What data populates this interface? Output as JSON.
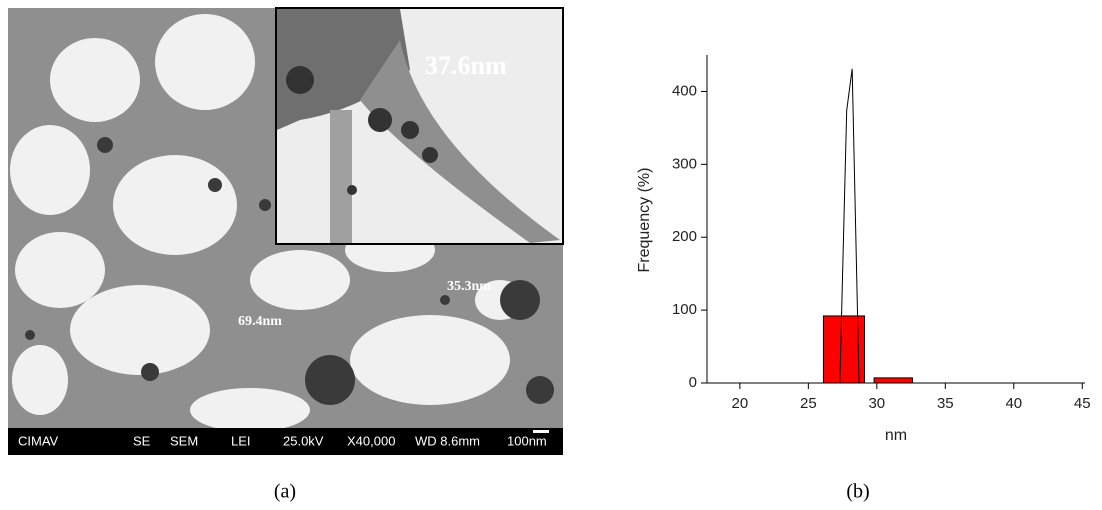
{
  "panel_a": {
    "measurements": [
      "37.6nm",
      "35.3nm",
      "69.4nm"
    ],
    "info_bar": [
      "CIMAV",
      "SE",
      "SEM",
      "LEI",
      "25.0kV",
      "X40,000",
      "WD 8.6mm",
      "100nm"
    ]
  },
  "captions": [
    "(a)",
    "(b)"
  ],
  "chart_data": {
    "type": "histogram",
    "xlabel": "nm",
    "ylabel": "Frequency (%)",
    "bins": [
      26.1,
      29.1,
      29.8,
      32.6
    ],
    "values": [
      92,
      0,
      7
    ],
    "color": "#ff0000",
    "line": {
      "x": [
        19,
        27.3,
        27.8,
        28.2,
        28.7,
        45
      ],
      "values": [
        0,
        0,
        374,
        431,
        0,
        0
      ],
      "color": "#000000"
    },
    "xlim": [
      17.6,
      45.2
    ],
    "ylim": [
      0,
      450
    ],
    "xticks": [
      20,
      25,
      30,
      35,
      40,
      45
    ],
    "yticks": [
      0,
      100,
      200,
      300,
      400
    ]
  }
}
